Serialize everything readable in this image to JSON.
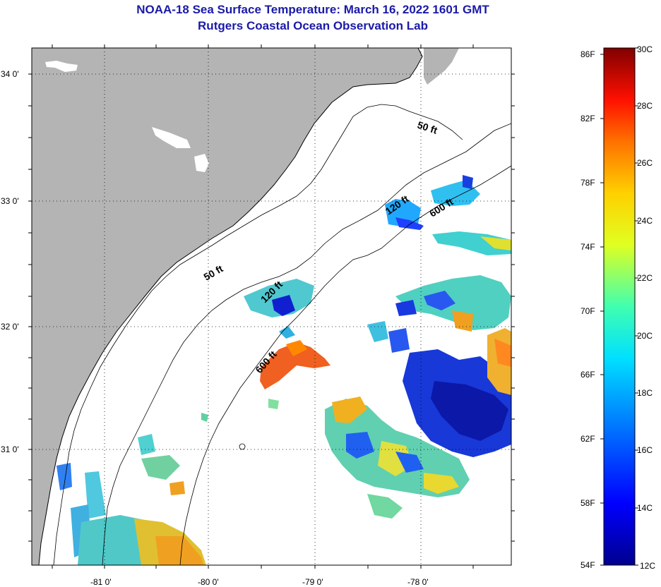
{
  "title_line1": "NOAA-18 Sea Surface Temperature:  March 16, 2022 1601 GMT",
  "title_line2": "Rutgers Coastal Ocean Observation Lab",
  "map": {
    "lat_labels": [
      "34 0'",
      "33 0'",
      "32 0'",
      "31 0'"
    ],
    "lon_labels": [
      "-81 0'",
      "-80 0'",
      "-79 0'",
      "-78 0'"
    ],
    "contours": [
      {
        "label": "50 ft"
      },
      {
        "label": "50 ft"
      },
      {
        "label": "120 ft"
      },
      {
        "label": "120 ft"
      },
      {
        "label": "600 ft"
      },
      {
        "label": "600 ft"
      }
    ],
    "land_color": "#b4b4b4",
    "ocean_color": "#ffffff"
  },
  "colorbar": {
    "fahrenheit_labels": [
      "86F",
      "82F",
      "78F",
      "74F",
      "70F",
      "66F",
      "62F",
      "58F",
      "54F"
    ],
    "celsius_labels": [
      "30C",
      "28C",
      "26C",
      "24C",
      "22C",
      "20C",
      "18C",
      "16C",
      "14C",
      "12C"
    ],
    "range_c": [
      12,
      30
    ],
    "range_f": [
      54,
      86
    ]
  }
}
